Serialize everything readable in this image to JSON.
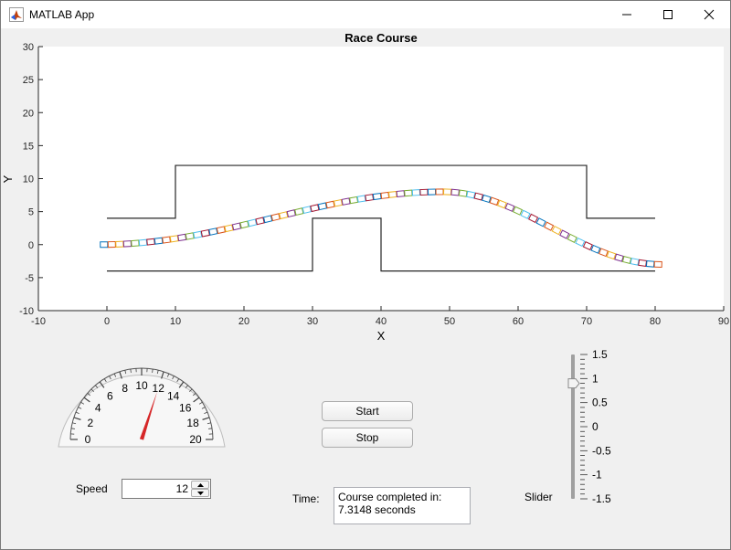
{
  "window": {
    "title": "MATLAB App",
    "icons": [
      "matlab-icon",
      "minimize-icon",
      "maximize-icon",
      "close-icon"
    ]
  },
  "plot": {
    "title": "Race Course",
    "xlabel": "X",
    "ylabel": "Y",
    "xticks": [
      "-10",
      "0",
      "10",
      "20",
      "30",
      "40",
      "50",
      "60",
      "70",
      "80",
      "90"
    ],
    "yticks": [
      "-10",
      "-5",
      "0",
      "5",
      "10",
      "15",
      "20",
      "25",
      "30"
    ]
  },
  "chart_data": {
    "type": "line",
    "xlim": [
      -10,
      90
    ],
    "ylim": [
      -10,
      30
    ],
    "grid": false,
    "series": [
      {
        "x": [
          0,
          10,
          10,
          70,
          70,
          80
        ],
        "y": [
          4,
          4,
          12,
          12,
          4,
          4
        ]
      },
      {
        "x": [
          0,
          30,
          30,
          40,
          40,
          80
        ],
        "y": [
          -4,
          -4,
          4,
          4,
          -4,
          -4
        ]
      }
    ],
    "car_path": {
      "x_start": -1,
      "x_end": 81,
      "y_start": 0,
      "y_peak": 8,
      "x_peak": 49,
      "y_end": -3,
      "segment_count": 72,
      "colors": [
        "#0072BD",
        "#D95319",
        "#EDB120",
        "#7E2F8E",
        "#77AC30",
        "#4DBEEE",
        "#A2142F"
      ]
    }
  },
  "gauge": {
    "min": 0,
    "max": 20,
    "value": 12,
    "labels": [
      "0",
      "2",
      "4",
      "6",
      "8",
      "10",
      "12",
      "14",
      "16",
      "18",
      "20"
    ],
    "needle_color": "#d62728"
  },
  "controls": {
    "start_label": "Start",
    "stop_label": "Stop",
    "speed_label": "Speed",
    "speed_value": "12",
    "time_label": "Time:",
    "time_text_line1": "Course completed in:",
    "time_text_line2": "7.3148 seconds",
    "slider_label": "Slider"
  },
  "slider": {
    "min": -1.5,
    "max": 1.5,
    "value": 0.9,
    "labels": [
      "1.5",
      "1",
      "0.5",
      "0",
      "-0.5",
      "-1",
      "-1.5"
    ]
  }
}
